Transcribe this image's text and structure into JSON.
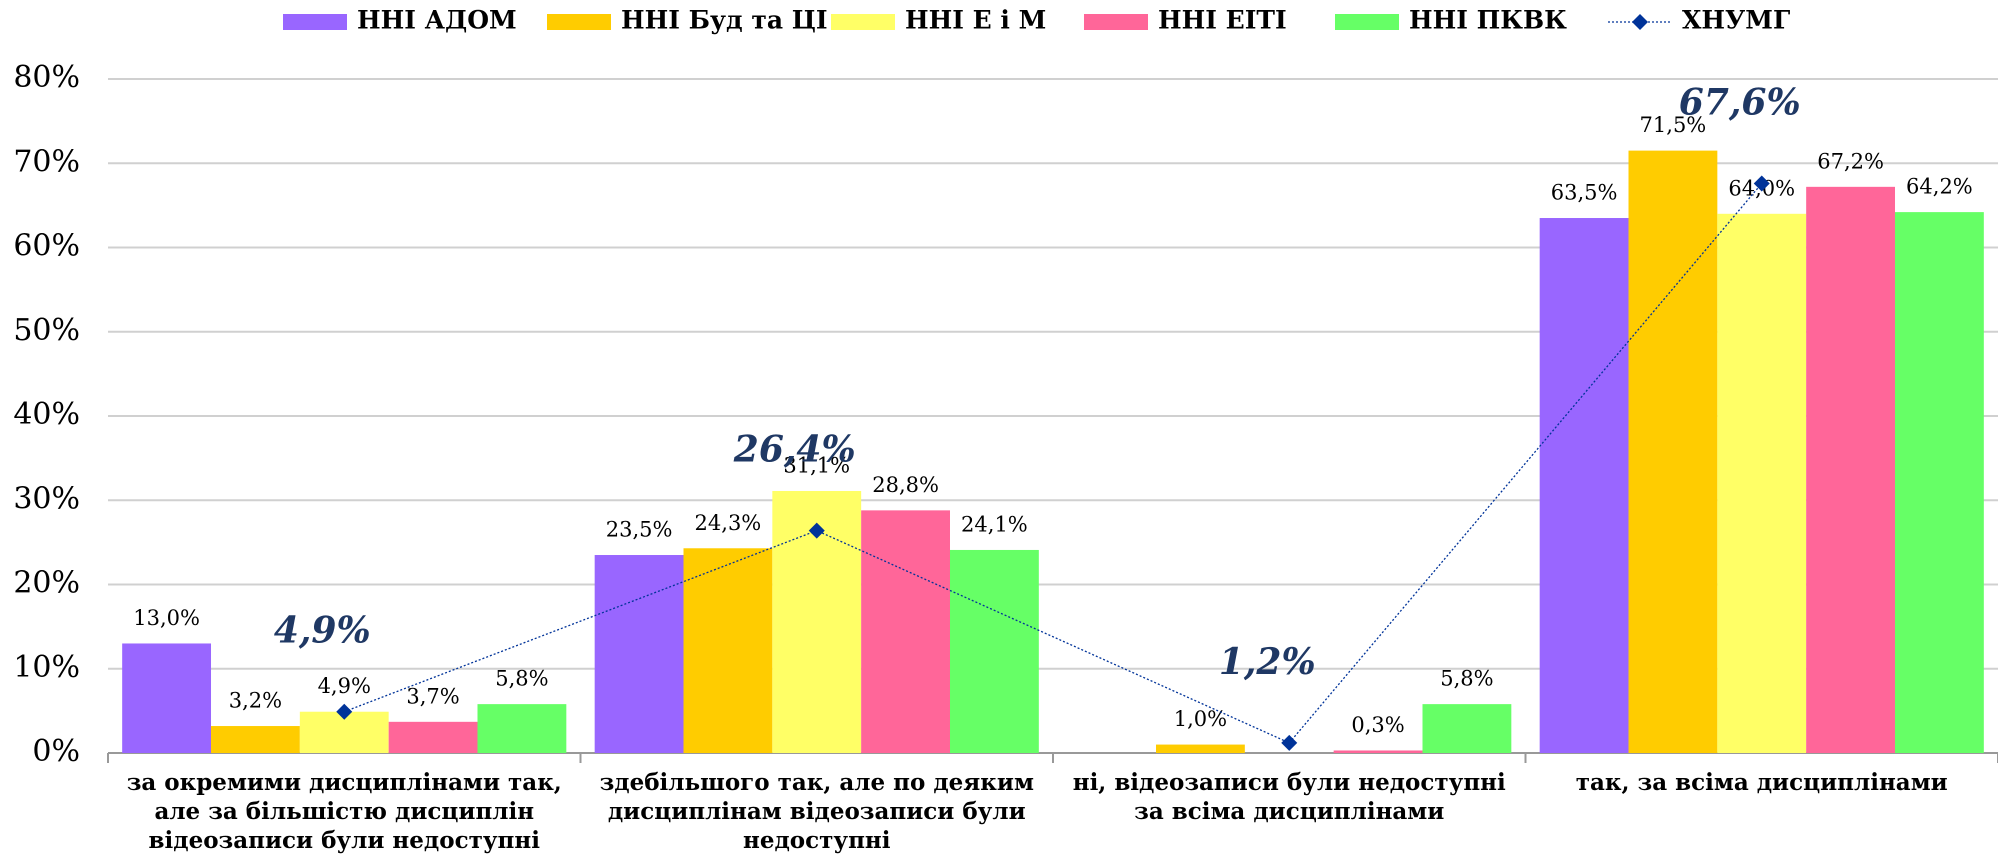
{
  "chart_data": {
    "type": "bar",
    "categories": [
      "за окремими дисциплінами так, але за більшістю дисциплін відеозаписи були недоступні",
      "здебільшого так, але по деяким дисциплінам відеозаписи були недоступні",
      "ні, відеозаписи були недоступні за всіма дисциплінами",
      "так, за всіма дисциплінами"
    ],
    "series": [
      {
        "name": "ННІ АДОМ",
        "color": "#9966ff",
        "values": [
          13.0,
          23.5,
          null,
          63.5
        ],
        "value_labels": [
          "13,0%",
          "23,5%",
          null,
          "63,5%"
        ]
      },
      {
        "name": "ННІ Буд та ЦІ",
        "color": "#ffcc00",
        "values": [
          3.2,
          24.3,
          1.0,
          71.5
        ],
        "value_labels": [
          "3,2%",
          "24,3%",
          "1,0%",
          "71,5%"
        ]
      },
      {
        "name": "ННІ Е і М",
        "color": "#ffff66",
        "values": [
          4.9,
          31.1,
          null,
          64.0
        ],
        "value_labels": [
          "4,9%",
          "31,1%",
          null,
          "64,0%"
        ]
      },
      {
        "name": "ННІ ЕІТІ",
        "color": "#ff6699",
        "values": [
          3.7,
          28.8,
          0.3,
          67.2
        ],
        "value_labels": [
          "3,7%",
          "28,8%",
          "0,3%",
          "67,2%"
        ]
      },
      {
        "name": "ННІ ПКВК",
        "color": "#66ff66",
        "values": [
          5.8,
          24.1,
          5.8,
          64.2
        ],
        "value_labels": [
          "5,8%",
          "24,1%",
          "5,8%",
          "64,2%"
        ]
      },
      {
        "name": "ХНУМГ",
        "type": "line",
        "color": "#003399",
        "values": [
          4.9,
          26.4,
          1.2,
          67.6
        ],
        "value_labels": [
          "4,9%",
          "26,4%",
          "1,2%",
          "67,6%"
        ]
      }
    ],
    "ylim": [
      0,
      80
    ],
    "yticks": [
      {
        "value": 0,
        "label": "0%"
      },
      {
        "value": 10,
        "label": "10%"
      },
      {
        "value": 20,
        "label": "20%"
      },
      {
        "value": 30,
        "label": "30%"
      },
      {
        "value": 40,
        "label": "40%"
      },
      {
        "value": 50,
        "label": "50%"
      },
      {
        "value": 60,
        "label": "60%"
      },
      {
        "value": 70,
        "label": "70%"
      },
      {
        "value": 80,
        "label": "80%"
      }
    ],
    "grid": true,
    "legend": "top"
  }
}
